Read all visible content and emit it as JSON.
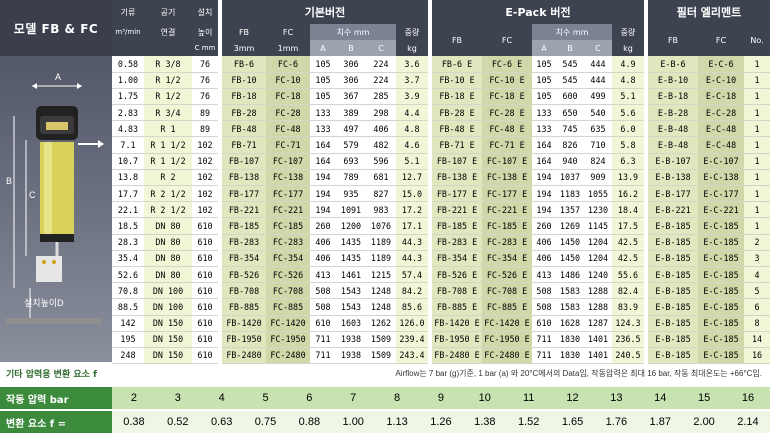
{
  "left": {
    "title": "모델 FB & FC",
    "dim_a": "A",
    "dim_b": "B",
    "dim_c": "C",
    "install_height": "설치높이D"
  },
  "spec": {
    "flow_h1": "기류",
    "flow_h2": "m³/min",
    "conn_h1": "공기",
    "conn_h2": "연결",
    "inst_h1": "설치",
    "inst_h2": "높이",
    "inst_h3": "C mm",
    "rows": [
      [
        "0.58",
        "R 3/8",
        "76"
      ],
      [
        "1.00",
        "R 1/2",
        "76"
      ],
      [
        "1.75",
        "R 1/2",
        "76"
      ],
      [
        "2.83",
        "R 3/4",
        "89"
      ],
      [
        "4.83",
        "R 1",
        "89"
      ],
      [
        "7.1",
        "R 1 1/2",
        "102"
      ],
      [
        "10.7",
        "R 1 1/2",
        "102"
      ],
      [
        "13.8",
        "R 2",
        "102"
      ],
      [
        "17.7",
        "R 2 1/2",
        "102"
      ],
      [
        "22.1",
        "R 2 1/2",
        "102"
      ],
      [
        "18.5",
        "DN 80",
        "610"
      ],
      [
        "28.3",
        "DN 80",
        "610"
      ],
      [
        "35.4",
        "DN 80",
        "610"
      ],
      [
        "52.6",
        "DN 80",
        "610"
      ],
      [
        "70.8",
        "DN 100",
        "610"
      ],
      [
        "88.5",
        "DN 100",
        "610"
      ],
      [
        "142",
        "DN 150",
        "610"
      ],
      [
        "195",
        "DN 150",
        "610"
      ],
      [
        "248",
        "DN 150",
        "610"
      ]
    ]
  },
  "basic": {
    "title": "기본버전",
    "fb": "FB",
    "fb_unit": "3mm",
    "fc": "FC",
    "fc_unit": "1mm",
    "dims": "치수 mm",
    "a": "A",
    "b": "B",
    "c": "C",
    "weight": "중량",
    "weight_unit": "kg",
    "rows": [
      [
        "FB-6",
        "FC-6",
        "105",
        "306",
        "224",
        "3.6"
      ],
      [
        "FB-10",
        "FC-10",
        "105",
        "306",
        "224",
        "3.7"
      ],
      [
        "FB-18",
        "FC-18",
        "105",
        "367",
        "285",
        "3.9"
      ],
      [
        "FB-28",
        "FC-28",
        "133",
        "389",
        "298",
        "4.4"
      ],
      [
        "FB-48",
        "FC-48",
        "133",
        "497",
        "406",
        "4.8"
      ],
      [
        "FB-71",
        "FC-71",
        "164",
        "579",
        "482",
        "4.6"
      ],
      [
        "FB-107",
        "FC-107",
        "164",
        "693",
        "596",
        "5.1"
      ],
      [
        "FB-138",
        "FC-138",
        "194",
        "789",
        "681",
        "12.7"
      ],
      [
        "FB-177",
        "FC-177",
        "194",
        "935",
        "827",
        "15.0"
      ],
      [
        "FB-221",
        "FC-221",
        "194",
        "1091",
        "983",
        "17.2"
      ],
      [
        "FB-185",
        "FC-185",
        "260",
        "1200",
        "1076",
        "17.1"
      ],
      [
        "FB-283",
        "FC-283",
        "406",
        "1435",
        "1189",
        "44.3"
      ],
      [
        "FB-354",
        "FC-354",
        "406",
        "1435",
        "1189",
        "44.3"
      ],
      [
        "FB-526",
        "FC-526",
        "413",
        "1461",
        "1215",
        "57.4"
      ],
      [
        "FB-708",
        "FC-708",
        "508",
        "1543",
        "1248",
        "84.2"
      ],
      [
        "FB-885",
        "FC-885",
        "508",
        "1543",
        "1248",
        "85.6"
      ],
      [
        "FB-1420",
        "FC-1420",
        "610",
        "1603",
        "1262",
        "126.0"
      ],
      [
        "FB-1950",
        "FC-1950",
        "711",
        "1938",
        "1509",
        "239.4"
      ],
      [
        "FB-2480",
        "FC-2480",
        "711",
        "1938",
        "1509",
        "243.4"
      ]
    ]
  },
  "epack": {
    "title": "E-Pack 버전",
    "fb": "FB",
    "fc": "FC",
    "dims": "치수 mm",
    "a": "A",
    "b": "B",
    "c": "C",
    "weight": "중량",
    "weight_unit": "kg",
    "rows": [
      [
        "FB-6 E",
        "FC-6 E",
        "105",
        "545",
        "444",
        "4.9"
      ],
      [
        "FB-10 E",
        "FC-10 E",
        "105",
        "545",
        "444",
        "4.8"
      ],
      [
        "FB-18 E",
        "FC-18 E",
        "105",
        "600",
        "499",
        "5.1"
      ],
      [
        "FB-28 E",
        "FC-28 E",
        "133",
        "650",
        "540",
        "5.6"
      ],
      [
        "FB-48 E",
        "FC-48 E",
        "133",
        "745",
        "635",
        "6.0"
      ],
      [
        "FB-71 E",
        "FC-71 E",
        "164",
        "826",
        "710",
        "5.8"
      ],
      [
        "FB-107 E",
        "FC-107 E",
        "164",
        "940",
        "824",
        "6.3"
      ],
      [
        "FB-138 E",
        "FC-138 E",
        "194",
        "1037",
        "909",
        "13.9"
      ],
      [
        "FB-177 E",
        "FC-177 E",
        "194",
        "1183",
        "1055",
        "16.2"
      ],
      [
        "FB-221 E",
        "FC-221 E",
        "194",
        "1357",
        "1230",
        "18.4"
      ],
      [
        "FB-185 E",
        "FC-185 E",
        "260",
        "1269",
        "1145",
        "17.5"
      ],
      [
        "FB-283 E",
        "FC-283 E",
        "406",
        "1450",
        "1204",
        "42.5"
      ],
      [
        "FB-354 E",
        "FC-354 E",
        "406",
        "1450",
        "1204",
        "42.5"
      ],
      [
        "FB-526 E",
        "FC-526 E",
        "413",
        "1486",
        "1240",
        "55.6"
      ],
      [
        "FB-708 E",
        "FC-708 E",
        "508",
        "1583",
        "1288",
        "82.4"
      ],
      [
        "FB-885 E",
        "FC-885 E",
        "508",
        "1583",
        "1288",
        "83.9"
      ],
      [
        "FB-1420 E",
        "FC-1420 E",
        "610",
        "1628",
        "1287",
        "124.3"
      ],
      [
        "FB-1950 E",
        "FC-1950 E",
        "711",
        "1830",
        "1401",
        "236.5"
      ],
      [
        "FB-2480 E",
        "FC-2480 E",
        "711",
        "1830",
        "1401",
        "240.5"
      ]
    ]
  },
  "element": {
    "title": "필터 엘리멘트",
    "fb": "FB",
    "fc": "FC",
    "no": "No.",
    "rows": [
      [
        "E-B-6",
        "E-C-6",
        "1"
      ],
      [
        "E-B-10",
        "E-C-10",
        "1"
      ],
      [
        "E-B-18",
        "E-C-18",
        "1"
      ],
      [
        "E-B-28",
        "E-C-28",
        "1"
      ],
      [
        "E-B-48",
        "E-C-48",
        "1"
      ],
      [
        "E-B-48",
        "E-C-48",
        "1"
      ],
      [
        "E-B-107",
        "E-C-107",
        "1"
      ],
      [
        "E-B-138",
        "E-C-138",
        "1"
      ],
      [
        "E-B-177",
        "E-C-177",
        "1"
      ],
      [
        "E-B-221",
        "E-C-221",
        "1"
      ],
      [
        "E-B-185",
        "E-C-185",
        "1"
      ],
      [
        "E-B-185",
        "E-C-185",
        "2"
      ],
      [
        "E-B-185",
        "E-C-185",
        "3"
      ],
      [
        "E-B-185",
        "E-C-185",
        "4"
      ],
      [
        "E-B-185",
        "E-C-185",
        "5"
      ],
      [
        "E-B-185",
        "E-C-185",
        "6"
      ],
      [
        "E-B-185",
        "E-C-185",
        "8"
      ],
      [
        "E-B-185",
        "E-C-185",
        "14"
      ],
      [
        "E-B-185",
        "E-C-185",
        "16"
      ]
    ]
  },
  "note": {
    "left": "기타 압력용 변환 요소 f",
    "right": "Airflow는 7 bar (g)기준, 1 bar (a) 와 20°C에서의 Data임, 작동압력은 최대 16 bar, 작동 최대온도는 +66°C임."
  },
  "correction": {
    "pressure_label": "작동 압력 bar",
    "factor_label": "변환 요소 f =",
    "pressures": [
      "2",
      "3",
      "4",
      "5",
      "6",
      "7",
      "8",
      "9",
      "10",
      "11",
      "12",
      "13",
      "14",
      "15",
      "16"
    ],
    "factors": [
      "0.38",
      "0.52",
      "0.63",
      "0.75",
      "0.88",
      "1.00",
      "1.13",
      "1.26",
      "1.38",
      "1.52",
      "1.65",
      "1.76",
      "1.87",
      "2.00",
      "2.14"
    ]
  }
}
